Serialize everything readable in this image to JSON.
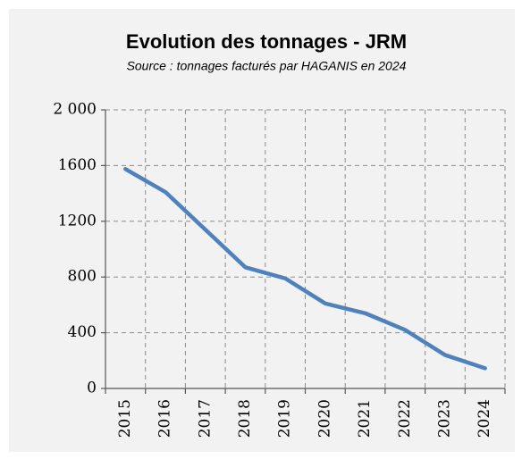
{
  "chart_data": {
    "type": "line",
    "title": "Evolution des tonnages - JRM",
    "subtitle": "Source : tonnages facturés par HAGANIS en 2024",
    "categories": [
      "2015",
      "2016",
      "2017",
      "2018",
      "2019",
      "2020",
      "2021",
      "2022",
      "2023",
      "2024"
    ],
    "values": [
      1575,
      1410,
      1140,
      870,
      790,
      610,
      540,
      420,
      240,
      145
    ],
    "color": "#4f81bd",
    "ylim": [
      0,
      2000
    ],
    "yticks": [
      0,
      400,
      800,
      1200,
      1600,
      {
        "value": 2000,
        "label": "2 000"
      }
    ],
    "grid": true
  }
}
